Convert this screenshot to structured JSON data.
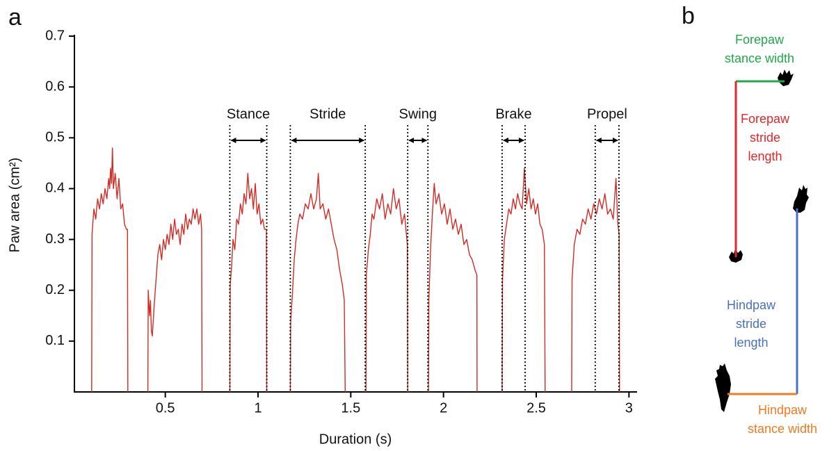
{
  "panel_labels": [
    "a",
    "b"
  ],
  "chart_data": {
    "type": "line",
    "xlabel": "Duration (s)",
    "ylabel": "Paw area (cm²)",
    "xlim": [
      0.01,
      3.04
    ],
    "ylim": [
      0,
      0.7
    ],
    "xticks": [
      0.5,
      1.0,
      1.5,
      2.0,
      2.5,
      3.0
    ],
    "yticks": [
      0.1,
      0.2,
      0.3,
      0.4,
      0.5,
      0.6,
      0.7
    ],
    "series": [
      {
        "color": "#d42a24",
        "x": [
          0.103,
          0.105,
          0.115,
          0.125,
          0.135,
          0.145,
          0.155,
          0.165,
          0.175,
          0.185,
          0.195,
          0.2,
          0.205,
          0.21,
          0.215,
          0.22,
          0.23,
          0.24,
          0.25,
          0.26,
          0.27,
          0.28,
          0.29,
          0.296,
          0.298,
          null,
          0.406,
          0.408,
          0.415,
          0.42,
          0.425,
          0.43,
          0.44,
          0.45,
          0.46,
          0.47,
          0.48,
          0.49,
          0.5,
          0.51,
          0.52,
          0.53,
          0.54,
          0.55,
          0.56,
          0.57,
          0.58,
          0.59,
          0.6,
          0.61,
          0.62,
          0.63,
          0.64,
          0.65,
          0.66,
          0.67,
          0.68,
          0.69,
          0.696,
          0.698,
          null,
          0.848,
          0.85,
          0.858,
          0.865,
          0.875,
          0.885,
          0.895,
          0.905,
          0.915,
          0.925,
          0.935,
          0.945,
          0.955,
          0.965,
          0.975,
          0.985,
          0.995,
          1.005,
          1.015,
          1.025,
          1.035,
          1.045,
          1.047,
          null,
          1.174,
          1.176,
          1.185,
          1.195,
          1.205,
          1.215,
          1.225,
          1.24,
          1.255,
          1.27,
          1.285,
          1.3,
          1.315,
          1.325,
          1.335,
          1.35,
          1.365,
          1.38,
          1.395,
          1.41,
          1.425,
          1.44,
          1.455,
          1.465,
          1.47,
          null,
          1.582,
          1.584,
          1.595,
          1.605,
          1.615,
          1.625,
          1.64,
          1.655,
          1.67,
          1.685,
          1.7,
          1.715,
          1.73,
          1.745,
          1.76,
          1.775,
          1.79,
          1.8,
          1.805,
          1.807,
          null,
          1.919,
          1.921,
          1.93,
          1.94,
          1.95,
          1.96,
          1.975,
          1.99,
          2.005,
          2.02,
          2.035,
          2.05,
          2.065,
          2.08,
          2.095,
          2.11,
          2.125,
          2.14,
          2.155,
          2.17,
          2.18,
          2.181,
          null,
          2.316,
          2.318,
          2.328,
          2.34,
          2.352,
          2.364,
          2.376,
          2.388,
          2.4,
          2.412,
          2.424,
          2.436,
          2.448,
          2.46,
          2.472,
          2.484,
          2.496,
          2.508,
          2.52,
          2.532,
          2.544,
          2.548,
          null,
          2.691,
          2.693,
          2.705,
          2.72,
          2.735,
          2.75,
          2.765,
          2.78,
          2.795,
          2.81,
          2.825,
          2.84,
          2.855,
          2.87,
          2.885,
          2.9,
          2.915,
          2.93,
          2.94,
          2.947,
          2.949
        ],
        "values": [
          0,
          0.31,
          0.36,
          0.34,
          0.38,
          0.36,
          0.39,
          0.37,
          0.4,
          0.38,
          0.42,
          0.4,
          0.44,
          0.41,
          0.48,
          0.4,
          0.43,
          0.38,
          0.42,
          0.36,
          0.37,
          0.33,
          0.32,
          0.32,
          0,
          null,
          0,
          0.2,
          0.15,
          0.18,
          0.12,
          0.11,
          0.17,
          0.22,
          0.27,
          0.29,
          0.26,
          0.3,
          0.28,
          0.31,
          0.29,
          0.33,
          0.3,
          0.34,
          0.31,
          0.32,
          0.29,
          0.33,
          0.31,
          0.35,
          0.32,
          0.34,
          0.33,
          0.36,
          0.34,
          0.36,
          0.33,
          0.35,
          0.32,
          0,
          null,
          0,
          0.21,
          0.25,
          0.3,
          0.28,
          0.34,
          0.33,
          0.37,
          0.35,
          0.39,
          0.37,
          0.43,
          0.38,
          0.4,
          0.36,
          0.41,
          0.35,
          0.37,
          0.33,
          0.34,
          0.32,
          0.32,
          0,
          null,
          0,
          0.14,
          0.19,
          0.26,
          0.3,
          0.33,
          0.35,
          0.34,
          0.37,
          0.36,
          0.39,
          0.36,
          0.38,
          0.43,
          0.36,
          0.37,
          0.34,
          0.36,
          0.33,
          0.3,
          0.28,
          0.24,
          0.21,
          0.18,
          0,
          null,
          0,
          0.23,
          0.28,
          0.31,
          0.35,
          0.34,
          0.38,
          0.36,
          0.39,
          0.34,
          0.37,
          0.35,
          0.4,
          0.36,
          0.38,
          0.33,
          0.35,
          0.31,
          0.29,
          0,
          null,
          0,
          0.18,
          0.28,
          0.35,
          0.41,
          0.37,
          0.39,
          0.35,
          0.37,
          0.33,
          0.36,
          0.32,
          0.34,
          0.31,
          0.33,
          0.29,
          0.3,
          0.27,
          0.26,
          0.24,
          0.23,
          0,
          null,
          0,
          0.22,
          0.3,
          0.33,
          0.36,
          0.35,
          0.38,
          0.36,
          0.39,
          0.37,
          0.36,
          0.44,
          0.37,
          0.4,
          0.36,
          0.38,
          0.35,
          0.37,
          0.33,
          0.32,
          0.29,
          0,
          null,
          0,
          0.22,
          0.29,
          0.32,
          0.31,
          0.34,
          0.33,
          0.36,
          0.34,
          0.37,
          0.35,
          0.38,
          0.36,
          0.39,
          0.35,
          0.36,
          0.34,
          0.42,
          0.33,
          0.31,
          0
        ]
      }
    ],
    "annotations": [
      {
        "label": "Stance",
        "x": [
          0.848,
          1.047
        ]
      },
      {
        "label": "Stride",
        "x": [
          1.174,
          1.578
        ]
      },
      {
        "label": "Swing",
        "x": [
          1.807,
          1.916
        ]
      },
      {
        "label": "Brake",
        "x": [
          2.316,
          2.44
        ]
      },
      {
        "label": "Propel",
        "x": [
          2.818,
          2.946
        ]
      }
    ]
  },
  "diagram": {
    "labels": [
      {
        "lines": [
          "Forepaw",
          "stance width"
        ],
        "color": "#22a84a"
      },
      {
        "lines": [
          "Forepaw",
          "stride",
          "length"
        ],
        "color": "#e3262a"
      },
      {
        "lines": [
          "Hindpaw",
          "stride",
          "length"
        ],
        "color": "#4a6fc4"
      },
      {
        "lines": [
          "Hindpaw",
          "stance width"
        ],
        "color": "#f07a22"
      }
    ]
  }
}
